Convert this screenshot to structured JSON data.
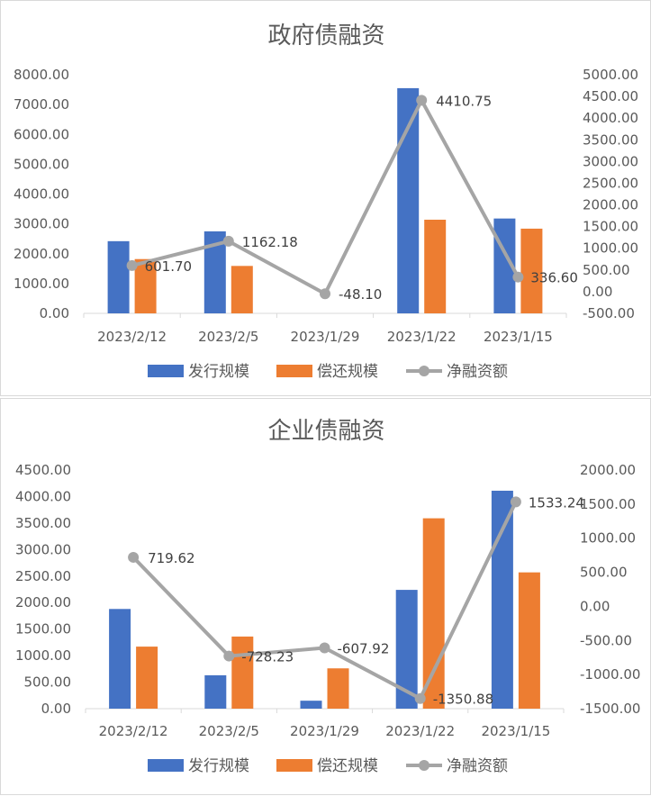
{
  "colors": {
    "issue": "#4472C4",
    "repay": "#ED7D31",
    "net": "#A5A5A5",
    "axis": "#d9d9d9",
    "text": "#595959"
  },
  "legend": {
    "issue": "发行规模",
    "repay": "偿还规模",
    "net": "净融资额"
  },
  "chart_data": [
    {
      "type": "bar",
      "title": "政府债融资",
      "categories": [
        "2023/2/12",
        "2023/2/5",
        "2023/1/29",
        "2023/1/22",
        "2023/1/15"
      ],
      "series": [
        {
          "name": "发行规模",
          "type": "bar",
          "axis": "left",
          "values": [
            2420,
            2750,
            0,
            7550,
            3180
          ]
        },
        {
          "name": "偿还规模",
          "type": "bar",
          "axis": "left",
          "values": [
            1820,
            1590,
            0,
            3140,
            2840
          ]
        },
        {
          "name": "净融资额",
          "type": "line",
          "axis": "right",
          "values": [
            601.7,
            1162.18,
            -48.1,
            4410.75,
            336.6
          ],
          "labels": [
            "601.70",
            "1162.18",
            "-48.10",
            "4410.75",
            "336.60"
          ]
        }
      ],
      "y_left": {
        "min": 0,
        "max": 8000,
        "step": 1000,
        "ticks": [
          "0.00",
          "1000.00",
          "2000.00",
          "3000.00",
          "4000.00",
          "5000.00",
          "6000.00",
          "7000.00",
          "8000.00"
        ]
      },
      "y_right": {
        "min": -500,
        "max": 5000,
        "step": 500,
        "ticks": [
          "-500.00",
          "0.00",
          "500.00",
          "1000.00",
          "1500.00",
          "2000.00",
          "2500.00",
          "3000.00",
          "3500.00",
          "4000.00",
          "4500.00",
          "5000.00"
        ]
      },
      "legend_position": "bottom",
      "grid": false
    },
    {
      "type": "bar",
      "title": "企业债融资",
      "categories": [
        "2023/2/12",
        "2023/2/5",
        "2023/1/29",
        "2023/1/22",
        "2023/1/15"
      ],
      "series": [
        {
          "name": "发行规模",
          "type": "bar",
          "axis": "left",
          "values": [
            1880,
            630,
            150,
            2240,
            4110
          ]
        },
        {
          "name": "偿还规模",
          "type": "bar",
          "axis": "left",
          "values": [
            1170,
            1360,
            760,
            3590,
            2570
          ]
        },
        {
          "name": "净融资额",
          "type": "line",
          "axis": "right",
          "values": [
            719.62,
            -728.23,
            -607.92,
            -1350.88,
            1533.24
          ],
          "labels": [
            "719.62",
            "-728.23",
            "-607.92",
            "-1350.88",
            "1533.24"
          ]
        }
      ],
      "y_left": {
        "min": 0,
        "max": 4500,
        "step": 500,
        "ticks": [
          "0.00",
          "500.00",
          "1000.00",
          "1500.00",
          "2000.00",
          "2500.00",
          "3000.00",
          "3500.00",
          "4000.00",
          "4500.00"
        ]
      },
      "y_right": {
        "min": -1500,
        "max": 2000,
        "step": 500,
        "ticks": [
          "-1500.00",
          "-1000.00",
          "-500.00",
          "0.00",
          "500.00",
          "1000.00",
          "1500.00",
          "2000.00"
        ]
      },
      "legend_position": "bottom",
      "grid": false
    }
  ]
}
